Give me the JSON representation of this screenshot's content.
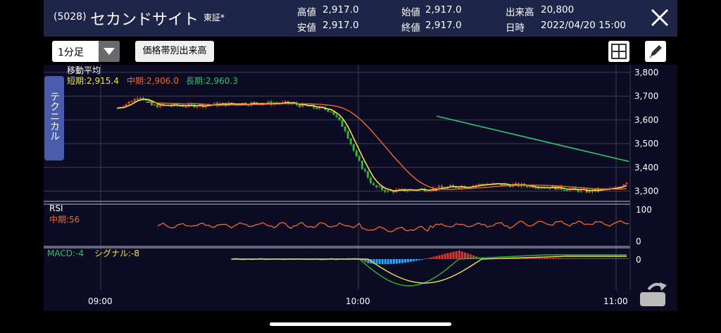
{
  "header": {
    "code": "(5028)",
    "name": "セカンドサイト",
    "exchange": "東証*",
    "high_label": "高値",
    "high": "2,917.0",
    "low_label": "安値",
    "low": "2,917.0",
    "open_label": "始値",
    "open": "2,917.0",
    "close_label": "終値",
    "close": "2,917.0",
    "volume_label": "出来高",
    "volume": "20,800",
    "time_label": "日時",
    "time": "2022/04/20 15:00"
  },
  "toolbar": {
    "interval": "1分足",
    "volume_button": "価格帯別出来高"
  },
  "side_tab": "テクニカル",
  "ma": {
    "title": "移動平均",
    "short": "短期:2,915.4",
    "mid": "中期:2,906.0",
    "long": "長期:2,960.3"
  },
  "rsi": {
    "title": "RSI",
    "mid": "中期:56"
  },
  "macd": {
    "macd": "MACD:-4",
    "signal": "シグナル:-8"
  },
  "colors": {
    "header_bg": "#1d2549",
    "chart_bg": "#0b0c24",
    "up": "#e8332a",
    "down": "#2fb52d",
    "short": "#f2e34a",
    "mid": "#f06a2f",
    "long": "#2fc46a",
    "macd_hist_neg": "#3aa0f0"
  },
  "chart_data": [
    {
      "type": "candlestick",
      "title": "移動平均",
      "y_ticks": [
        "3,800",
        "3,700",
        "3,600",
        "3,500",
        "3,400",
        "3,300"
      ],
      "ylim": [
        3260,
        3820
      ],
      "x_ticks": [
        "09:00",
        "10:00",
        "11:00"
      ],
      "series": [
        {
          "name": "短期",
          "last": 2915.4
        },
        {
          "name": "中期",
          "last": 2906.0
        },
        {
          "name": "長期",
          "last": 2960.3
        }
      ],
      "price_path": [
        [
          0,
          3650
        ],
        [
          8,
          3700
        ],
        [
          12,
          3660
        ],
        [
          25,
          3660
        ],
        [
          45,
          3670
        ],
        [
          60,
          3670
        ],
        [
          75,
          3640
        ],
        [
          80,
          3560
        ],
        [
          84,
          3440
        ],
        [
          90,
          3320
        ],
        [
          95,
          3300
        ],
        [
          110,
          3310
        ],
        [
          130,
          3330
        ],
        [
          150,
          3320
        ],
        [
          165,
          3300
        ],
        [
          175,
          3310
        ],
        [
          180,
          3350
        ]
      ]
    },
    {
      "type": "line",
      "title": "RSI",
      "y_ticks": [
        "100",
        "0"
      ],
      "ylim": [
        0,
        100
      ],
      "series": [
        {
          "name": "中期",
          "last": 56
        }
      ]
    },
    {
      "type": "bar",
      "title": "MACD",
      "y_ticks": [
        "0"
      ],
      "series": [
        {
          "name": "MACD",
          "last": -4
        },
        {
          "name": "シグナル",
          "last": -8
        }
      ]
    }
  ]
}
